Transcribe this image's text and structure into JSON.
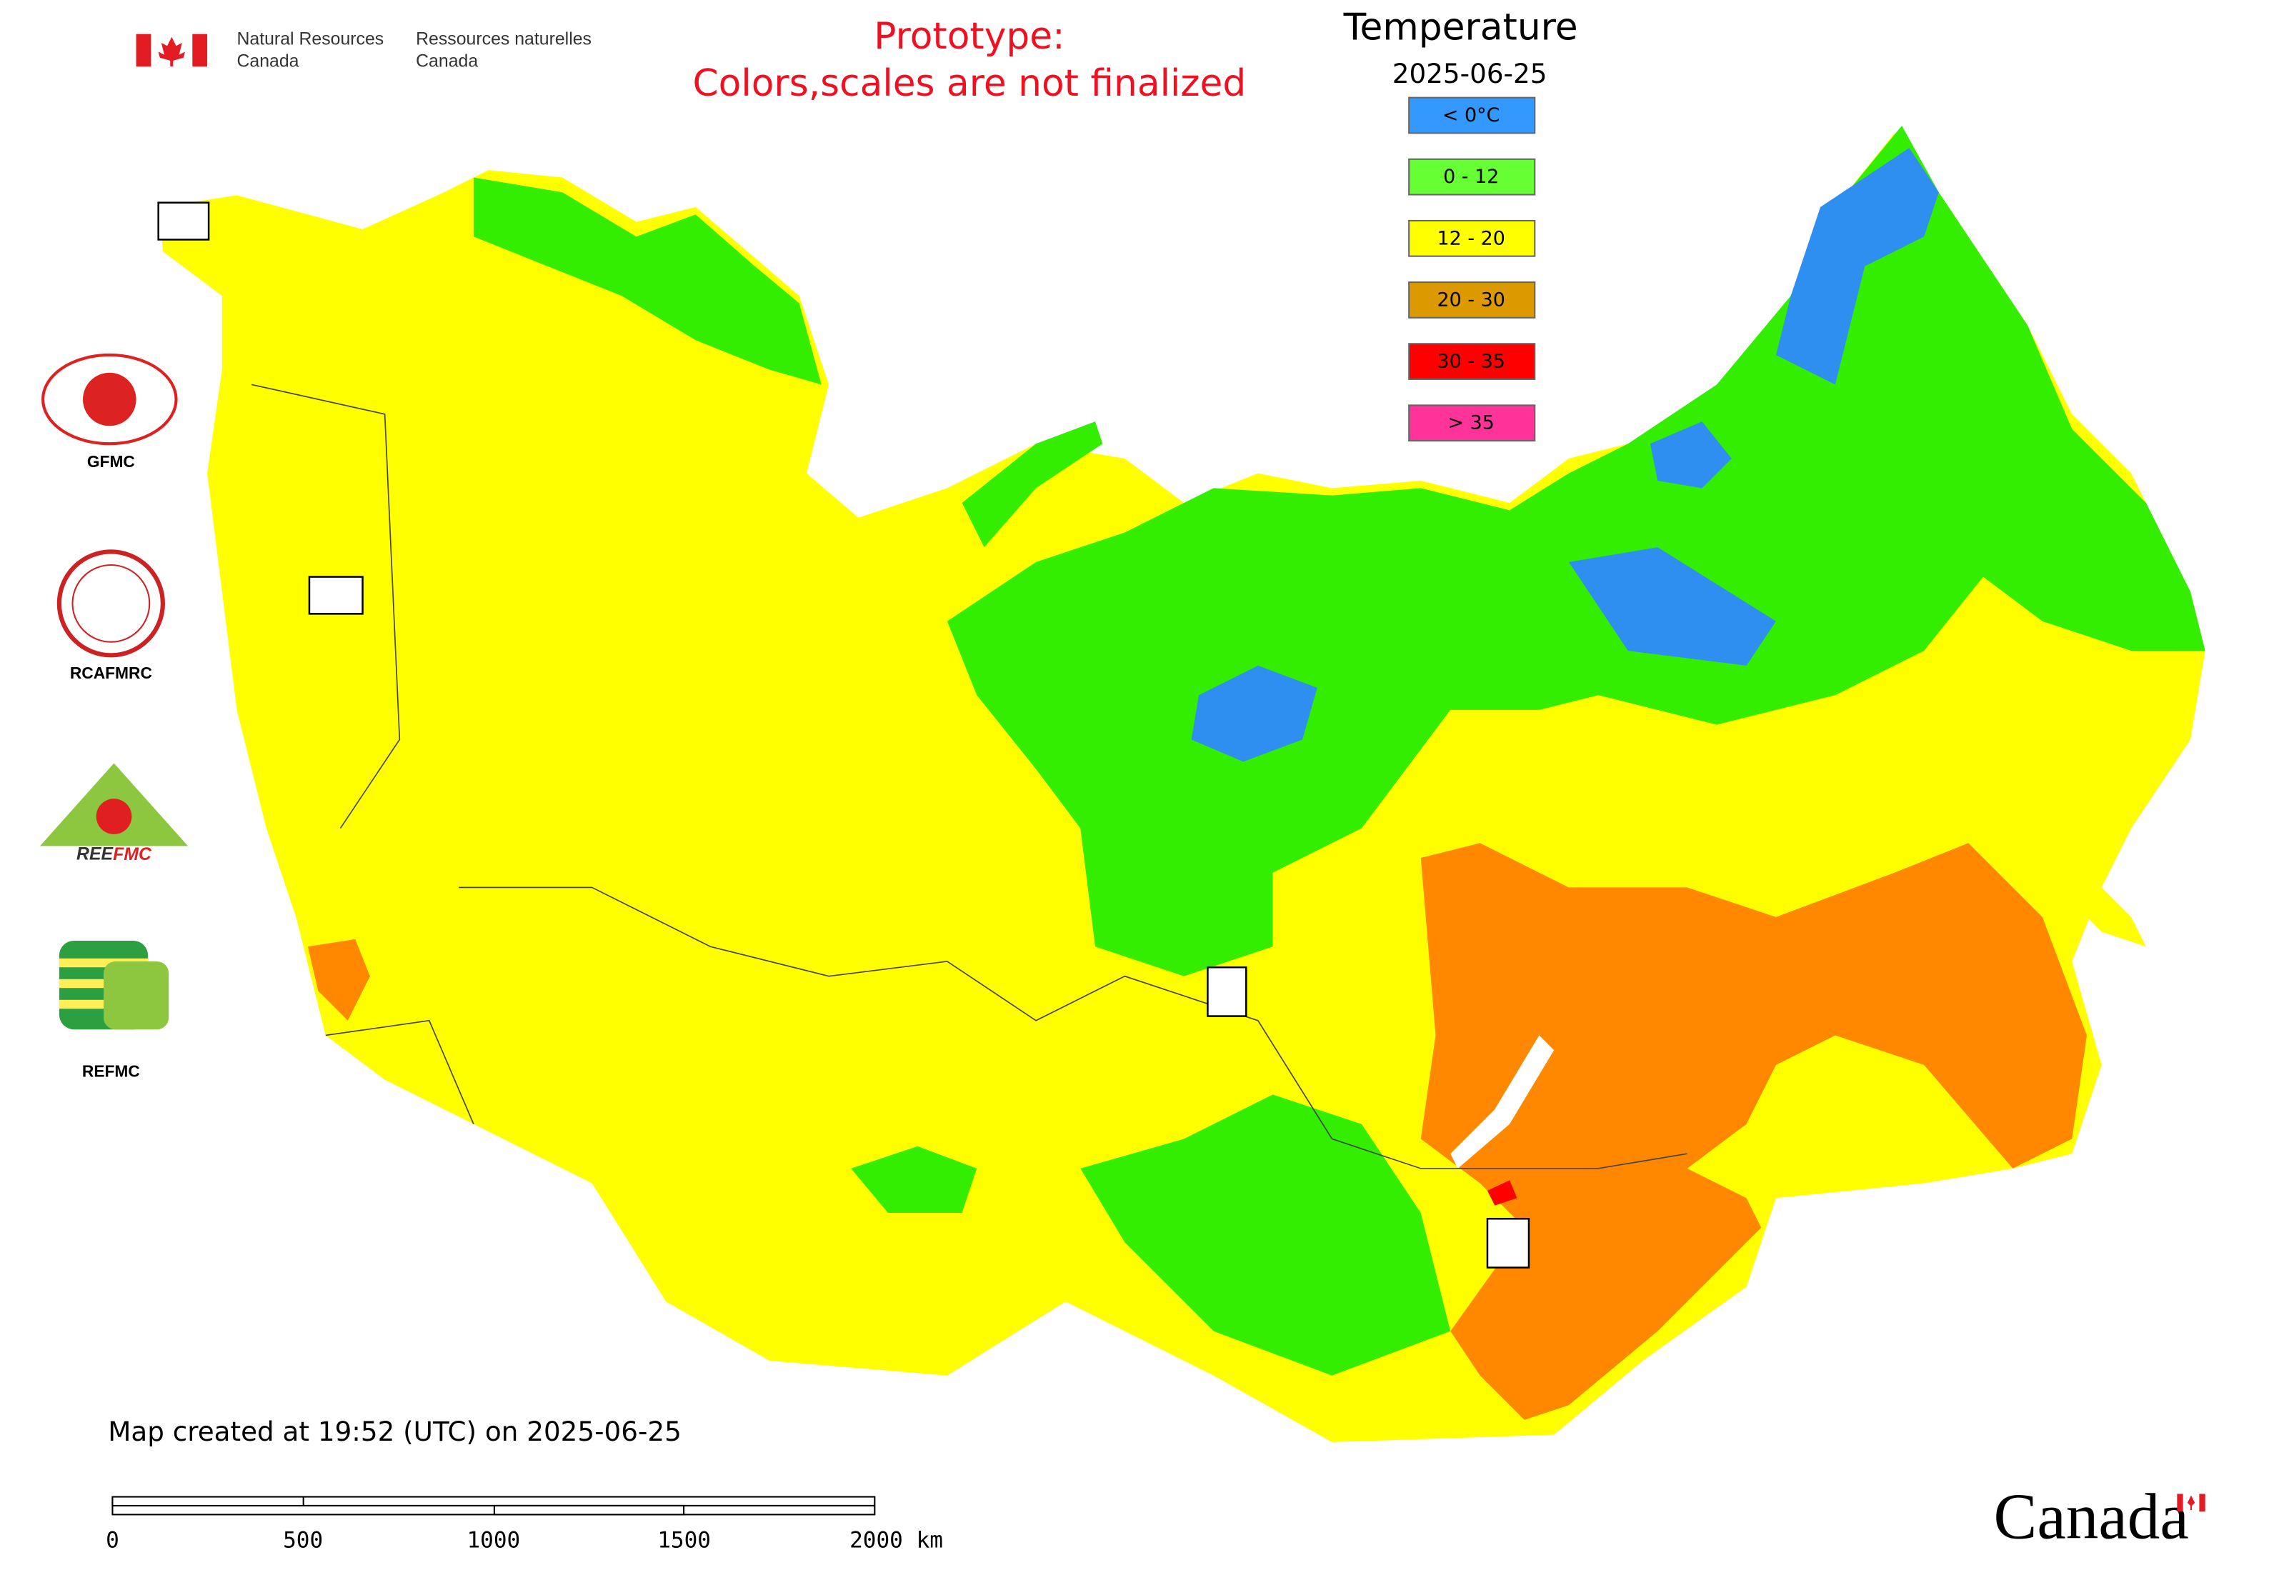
{
  "header": {
    "agency_en": [
      "Natural Resources",
      "Canada"
    ],
    "agency_fr": [
      "Ressources naturelles",
      "Canada"
    ],
    "notice": [
      "Prototype:",
      "Colors,scales are not finalized"
    ]
  },
  "legend": {
    "title": "Temperature",
    "date": "2025-06-25",
    "items": [
      {
        "label": "< 0°C",
        "color": "#3399ff"
      },
      {
        "label": "0 - 12",
        "color": "#66ff33"
      },
      {
        "label": "12 - 20",
        "color": "#ffff00"
      },
      {
        "label": "20 - 30",
        "color": "#dd9900"
      },
      {
        "label": "30 - 35",
        "color": "#ff0000"
      },
      {
        "label": "> 35",
        "color": "#ff3399"
      }
    ]
  },
  "logos": [
    "GFMC",
    "RCAFMRC",
    "REFMC"
  ],
  "footer": {
    "created": "Map created at 19:52 (UTC) on 2025-06-25",
    "scale_labels": [
      "0",
      "500",
      "1000",
      "1500",
      "2000 km"
    ],
    "wordmark": "Canada"
  }
}
